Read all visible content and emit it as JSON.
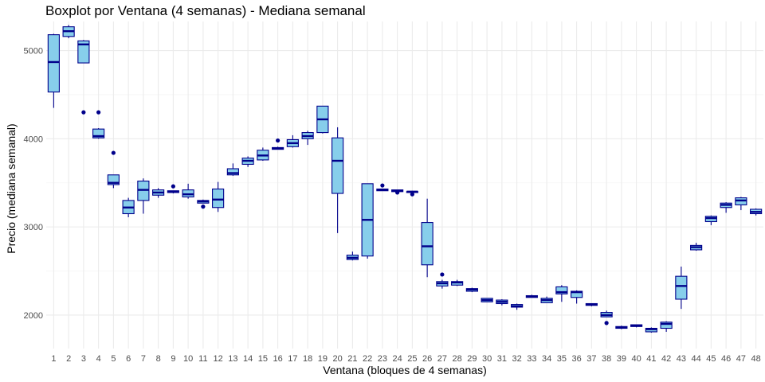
{
  "colors": {
    "box_fill": "#87CEEB",
    "box_line": "#00008B",
    "grid_major": "#ebebeb",
    "grid_minor": "#f5f5f5"
  },
  "chart_data": {
    "type": "boxplot",
    "title": "Boxplot por Ventana (4 semanas) - Mediana semanal",
    "xlabel": "Ventana (bloques de 4 semanas)",
    "ylabel": "Precio (mediana semanal)",
    "ylim": [
      1620,
      5330
    ],
    "yticks": [
      2000,
      3000,
      4000,
      5000
    ],
    "categories": [
      "1",
      "2",
      "3",
      "4",
      "5",
      "6",
      "7",
      "8",
      "9",
      "10",
      "11",
      "12",
      "13",
      "14",
      "15",
      "16",
      "17",
      "18",
      "19",
      "20",
      "21",
      "22",
      "23",
      "24",
      "25",
      "26",
      "27",
      "28",
      "29",
      "30",
      "31",
      "32",
      "33",
      "34",
      "35",
      "36",
      "37",
      "38",
      "39",
      "40",
      "41",
      "42",
      "43",
      "44",
      "45",
      "46",
      "47",
      "48"
    ],
    "boxes": [
      {
        "min": 4350,
        "q1": 4530,
        "median": 4870,
        "q3": 5180,
        "max": 5190,
        "outliers": []
      },
      {
        "min": 5140,
        "q1": 5160,
        "median": 5220,
        "q3": 5270,
        "max": 5290,
        "outliers": []
      },
      {
        "min": 4860,
        "q1": 4860,
        "median": 5070,
        "q3": 5110,
        "max": 5120,
        "outliers": [
          4300
        ]
      },
      {
        "min": 4000,
        "q1": 4010,
        "median": 4030,
        "q3": 4110,
        "max": 4120,
        "outliers": [
          4300
        ]
      },
      {
        "min": 3440,
        "q1": 3480,
        "median": 3500,
        "q3": 3590,
        "max": 3590,
        "outliers": [
          3840
        ]
      },
      {
        "min": 3110,
        "q1": 3150,
        "median": 3220,
        "q3": 3300,
        "max": 3330,
        "outliers": []
      },
      {
        "min": 3150,
        "q1": 3300,
        "median": 3420,
        "q3": 3520,
        "max": 3550,
        "outliers": []
      },
      {
        "min": 3330,
        "q1": 3360,
        "median": 3390,
        "q3": 3420,
        "max": 3440,
        "outliers": []
      },
      {
        "min": 3380,
        "q1": 3390,
        "median": 3400,
        "q3": 3410,
        "max": 3410,
        "outliers": [
          3460
        ]
      },
      {
        "min": 3320,
        "q1": 3340,
        "median": 3370,
        "q3": 3420,
        "max": 3490,
        "outliers": []
      },
      {
        "min": 3270,
        "q1": 3270,
        "median": 3290,
        "q3": 3300,
        "max": 3310,
        "outliers": [
          3230
        ]
      },
      {
        "min": 3170,
        "q1": 3220,
        "median": 3310,
        "q3": 3430,
        "max": 3510,
        "outliers": []
      },
      {
        "min": 3580,
        "q1": 3590,
        "median": 3610,
        "q3": 3660,
        "max": 3720,
        "outliers": []
      },
      {
        "min": 3680,
        "q1": 3710,
        "median": 3750,
        "q3": 3780,
        "max": 3800,
        "outliers": []
      },
      {
        "min": 3750,
        "q1": 3760,
        "median": 3810,
        "q3": 3870,
        "max": 3900,
        "outliers": []
      },
      {
        "min": 3880,
        "q1": 3880,
        "median": 3890,
        "q3": 3900,
        "max": 3910,
        "outliers": [
          3980
        ]
      },
      {
        "min": 3900,
        "q1": 3910,
        "median": 3950,
        "q3": 3990,
        "max": 4040,
        "outliers": []
      },
      {
        "min": 3930,
        "q1": 4000,
        "median": 4030,
        "q3": 4070,
        "max": 4090,
        "outliers": []
      },
      {
        "min": 4060,
        "q1": 4070,
        "median": 4220,
        "q3": 4370,
        "max": 4370,
        "outliers": []
      },
      {
        "min": 2930,
        "q1": 3380,
        "median": 3750,
        "q3": 4010,
        "max": 4130,
        "outliers": []
      },
      {
        "min": 2620,
        "q1": 2630,
        "median": 2650,
        "q3": 2680,
        "max": 2720,
        "outliers": []
      },
      {
        "min": 2640,
        "q1": 2670,
        "median": 3080,
        "q3": 3490,
        "max": 3490,
        "outliers": []
      },
      {
        "min": 3410,
        "q1": 3410,
        "median": 3420,
        "q3": 3430,
        "max": 3430,
        "outliers": [
          3470
        ]
      },
      {
        "min": 3400,
        "q1": 3400,
        "median": 3410,
        "q3": 3420,
        "max": 3420,
        "outliers": [
          3390
        ]
      },
      {
        "min": 3390,
        "q1": 3390,
        "median": 3400,
        "q3": 3400,
        "max": 3410,
        "outliers": [
          3370
        ]
      },
      {
        "min": 2430,
        "q1": 2570,
        "median": 2780,
        "q3": 3050,
        "max": 3320,
        "outliers": []
      },
      {
        "min": 2300,
        "q1": 2330,
        "median": 2360,
        "q3": 2380,
        "max": 2400,
        "outliers": [
          2460
        ]
      },
      {
        "min": 2330,
        "q1": 2340,
        "median": 2370,
        "q3": 2380,
        "max": 2400,
        "outliers": []
      },
      {
        "min": 2260,
        "q1": 2270,
        "median": 2290,
        "q3": 2300,
        "max": 2310,
        "outliers": []
      },
      {
        "min": 2150,
        "q1": 2150,
        "median": 2170,
        "q3": 2190,
        "max": 2190,
        "outliers": []
      },
      {
        "min": 2110,
        "q1": 2130,
        "median": 2150,
        "q3": 2170,
        "max": 2180,
        "outliers": []
      },
      {
        "min": 2060,
        "q1": 2090,
        "median": 2100,
        "q3": 2120,
        "max": 2130,
        "outliers": []
      },
      {
        "min": 2200,
        "q1": 2200,
        "median": 2210,
        "q3": 2220,
        "max": 2230,
        "outliers": []
      },
      {
        "min": 2140,
        "q1": 2140,
        "median": 2170,
        "q3": 2190,
        "max": 2210,
        "outliers": []
      },
      {
        "min": 2150,
        "q1": 2240,
        "median": 2260,
        "q3": 2320,
        "max": 2340,
        "outliers": []
      },
      {
        "min": 2130,
        "q1": 2200,
        "median": 2260,
        "q3": 2270,
        "max": 2280,
        "outliers": []
      },
      {
        "min": 2100,
        "q1": 2110,
        "median": 2120,
        "q3": 2130,
        "max": 2130,
        "outliers": []
      },
      {
        "min": 1980,
        "q1": 1980,
        "median": 2000,
        "q3": 2030,
        "max": 2050,
        "outliers": [
          1910
        ]
      },
      {
        "min": 1840,
        "q1": 1850,
        "median": 1860,
        "q3": 1870,
        "max": 1880,
        "outliers": []
      },
      {
        "min": 1860,
        "q1": 1870,
        "median": 1880,
        "q3": 1890,
        "max": 1890,
        "outliers": []
      },
      {
        "min": 1800,
        "q1": 1810,
        "median": 1840,
        "q3": 1850,
        "max": 1860,
        "outliers": []
      },
      {
        "min": 1810,
        "q1": 1850,
        "median": 1900,
        "q3": 1920,
        "max": 1930,
        "outliers": []
      },
      {
        "min": 2070,
        "q1": 2180,
        "median": 2330,
        "q3": 2440,
        "max": 2550,
        "outliers": []
      },
      {
        "min": 2730,
        "q1": 2740,
        "median": 2770,
        "q3": 2790,
        "max": 2820,
        "outliers": []
      },
      {
        "min": 3020,
        "q1": 3060,
        "median": 3100,
        "q3": 3120,
        "max": 3130,
        "outliers": []
      },
      {
        "min": 3160,
        "q1": 3220,
        "median": 3250,
        "q3": 3270,
        "max": 3280,
        "outliers": []
      },
      {
        "min": 3190,
        "q1": 3250,
        "median": 3300,
        "q3": 3330,
        "max": 3340,
        "outliers": []
      },
      {
        "min": 3130,
        "q1": 3150,
        "median": 3170,
        "q3": 3200,
        "max": 3210,
        "outliers": []
      }
    ]
  }
}
